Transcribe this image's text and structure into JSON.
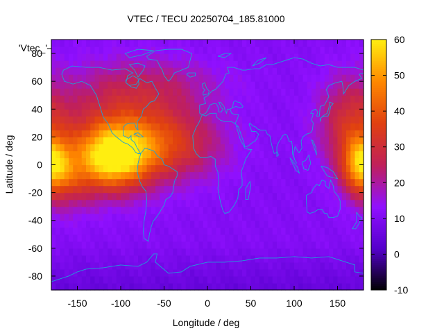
{
  "chart_data": {
    "type": "heatmap",
    "title": "VTEC / TECU 20250704_185.81000",
    "xlabel": "Longitude / deg",
    "ylabel": "Latitude / deg",
    "xlim": [
      -180,
      180
    ],
    "ylim": [
      -90,
      90
    ],
    "x_ticks": [
      -150,
      -100,
      -50,
      0,
      50,
      100,
      150
    ],
    "y_ticks": [
      -80,
      -60,
      -40,
      -20,
      0,
      20,
      40,
      60,
      80
    ],
    "colorbar": {
      "min": -10,
      "max": 60,
      "ticks": [
        -10,
        0,
        10,
        20,
        30,
        40,
        50,
        60
      ],
      "palette": [
        "#000000",
        "#5500cc",
        "#9010ff",
        "#c0205a",
        "#e04010",
        "#ff8800",
        "#ffee10"
      ]
    },
    "legend": {
      "key_label": "'Vtec_'",
      "placement": "top-left"
    },
    "overlay": "continent coastlines (cyan)",
    "overlay_color": "#1ea0d8",
    "grid_step_deg": 5,
    "field_features": [
      {
        "feature": "equatorial anomaly (Americas)",
        "lon_center": -105,
        "lat_center": 5,
        "peak_tecu": 56
      },
      {
        "feature": "equatorial anomaly (W Pacific)",
        "lon_center": 178,
        "lat_center": 0,
        "peak_tecu": 46
      },
      {
        "feature": "background",
        "value_tecu": 11
      },
      {
        "feature": "southern polar minimum",
        "value_tecu": 5
      }
    ]
  }
}
